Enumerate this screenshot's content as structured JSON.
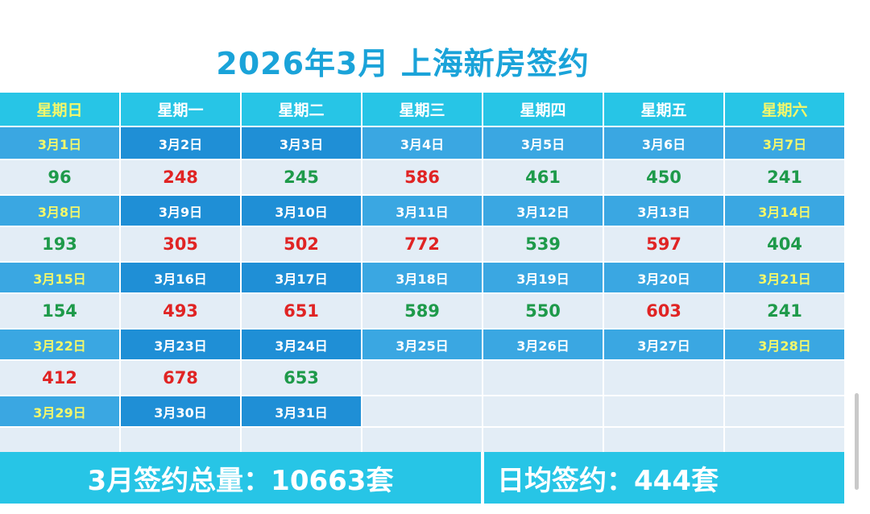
{
  "title": "2026年3月 上海新房签约",
  "headers": [
    "星期日",
    "星期一",
    "星期二",
    "星期三",
    "星期四",
    "星期五",
    "星期六"
  ],
  "weeks": [
    {
      "dates": [
        "3月1日",
        "3月2日",
        "3月3日",
        "3月4日",
        "3月5日",
        "3月6日",
        "3月7日"
      ],
      "values": [
        "96",
        "248",
        "245",
        "586",
        "461",
        "450",
        "241"
      ],
      "colors": [
        "green",
        "red",
        "green",
        "red",
        "green",
        "green",
        "green"
      ]
    },
    {
      "dates": [
        "3月8日",
        "3月9日",
        "3月10日",
        "3月11日",
        "3月12日",
        "3月13日",
        "3月14日"
      ],
      "values": [
        "193",
        "305",
        "502",
        "772",
        "539",
        "597",
        "404"
      ],
      "colors": [
        "green",
        "red",
        "red",
        "red",
        "green",
        "red",
        "green"
      ]
    },
    {
      "dates": [
        "3月15日",
        "3月16日",
        "3月17日",
        "3月18日",
        "3月19日",
        "3月20日",
        "3月21日"
      ],
      "values": [
        "154",
        "493",
        "651",
        "589",
        "550",
        "603",
        "241"
      ],
      "colors": [
        "green",
        "red",
        "red",
        "green",
        "green",
        "red",
        "green"
      ]
    },
    {
      "dates": [
        "3月22日",
        "3月23日",
        "3月24日",
        "3月25日",
        "3月26日",
        "3月27日",
        "3月28日"
      ],
      "values": [
        "412",
        "678",
        "653",
        "",
        "",
        "",
        ""
      ],
      "colors": [
        "red",
        "red",
        "green",
        "",
        "",
        "",
        ""
      ]
    },
    {
      "dates": [
        "3月29日",
        "3月30日",
        "3月31日",
        "",
        "",
        "",
        ""
      ],
      "values": [
        "",
        "",
        "",
        "",
        "",
        "",
        ""
      ],
      "colors": [
        "",
        "",
        "",
        "",
        "",
        "",
        ""
      ]
    }
  ],
  "footer": {
    "total_label": "3月签约总量：10663套",
    "daily_label": "日均签约：444套"
  },
  "colors": {
    "title": "#1aa3d9",
    "header_bg": "#27c5e6",
    "date_bg": "#3aa7e2",
    "value_bg": "#e3edf6",
    "weekend_text": "#f4f76a",
    "green": "#1e9a4a",
    "red": "#e02424"
  }
}
